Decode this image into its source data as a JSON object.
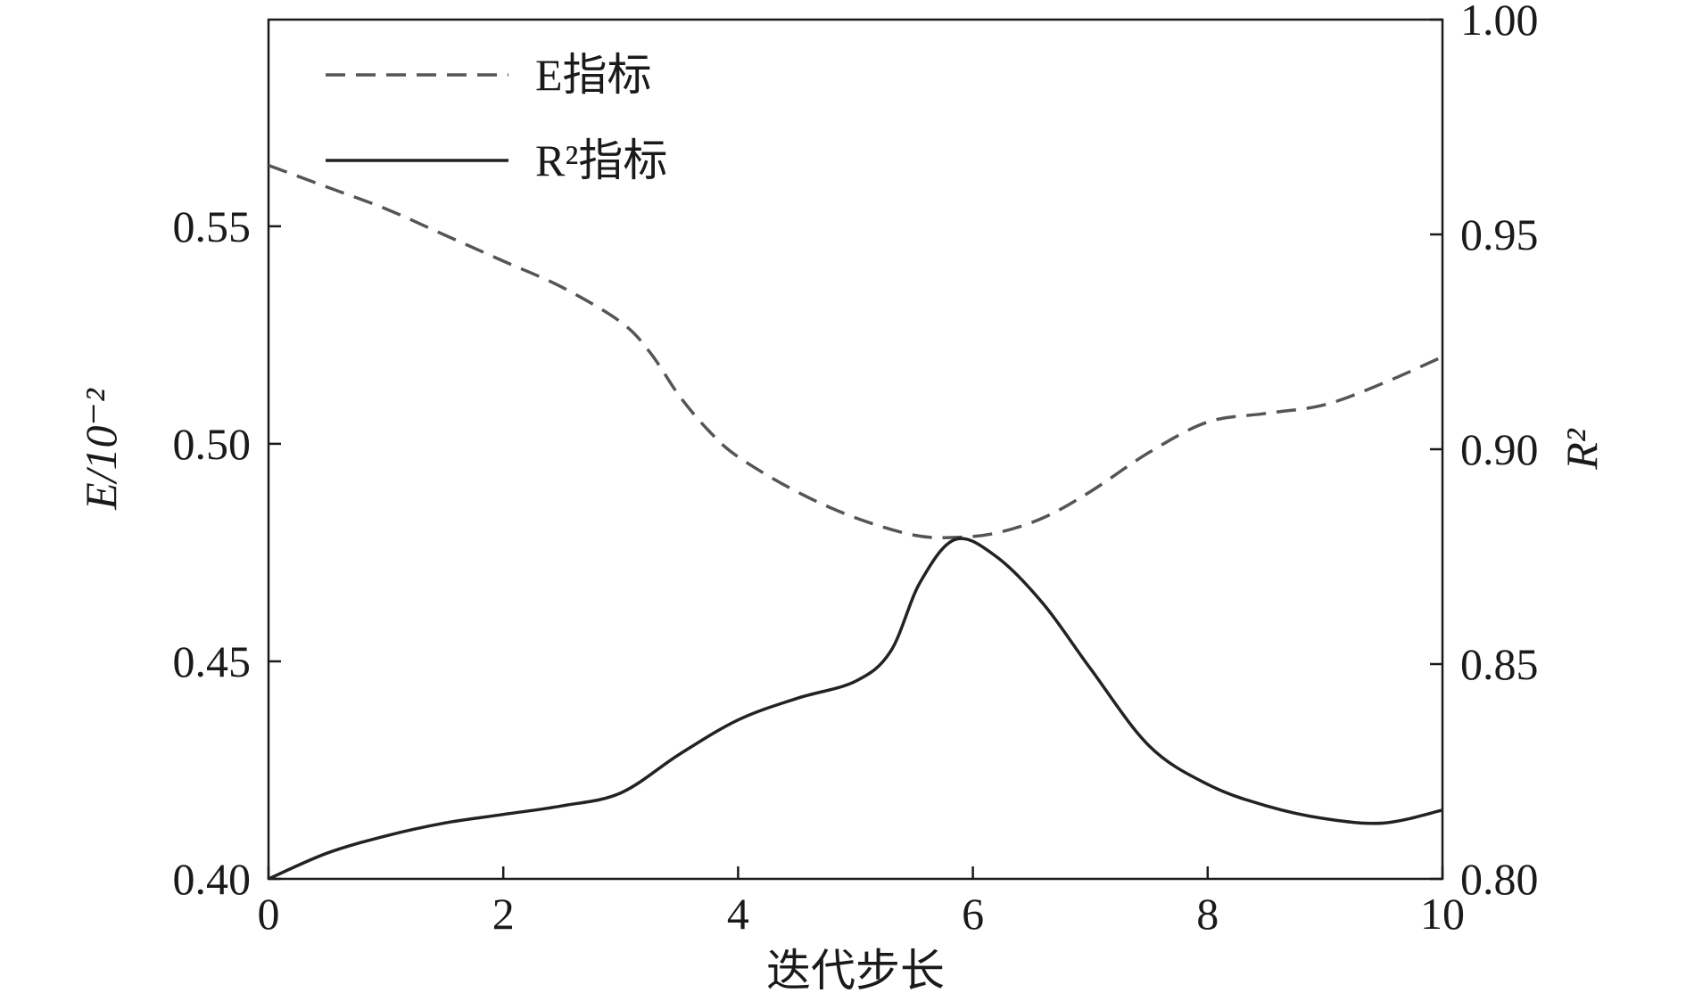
{
  "chart_data": {
    "type": "line",
    "title": "",
    "xlabel": "迭代步长",
    "ylabel_left": "E/10⁻²",
    "ylabel_right": "R²",
    "x_ticks": [
      "0",
      "2",
      "4",
      "6",
      "8",
      "10"
    ],
    "y_left_ticks": [
      "0.40",
      "0.45",
      "0.50",
      "0.55"
    ],
    "y_right_ticks": [
      "0.80",
      "0.85",
      "0.90",
      "0.95",
      "1.00"
    ],
    "xlim": [
      0,
      10
    ],
    "ylim_left": [
      0.4,
      0.5975
    ],
    "ylim_right": [
      0.8,
      1.0
    ],
    "grid": false,
    "legend_position": "top-left",
    "series": [
      {
        "name": "E指标",
        "axis": "left",
        "style": "dashed",
        "color": "#555555",
        "x": [
          0,
          0.5,
          1,
          1.5,
          2,
          2.5,
          3,
          3.25,
          3.5,
          3.75,
          4,
          4.5,
          5,
          5.5,
          5.85,
          6.2,
          6.6,
          7,
          7.5,
          8,
          8.5,
          9,
          9.5,
          10
        ],
        "y": [
          0.564,
          0.559,
          0.554,
          0.548,
          0.542,
          0.536,
          0.528,
          0.521,
          0.511,
          0.503,
          0.497,
          0.489,
          0.483,
          0.479,
          0.4785,
          0.4795,
          0.483,
          0.489,
          0.498,
          0.505,
          0.507,
          0.509,
          0.514,
          0.52
        ]
      },
      {
        "name": "R²指标",
        "axis": "right",
        "style": "solid",
        "color": "#222222",
        "x": [
          0,
          0.5,
          1,
          1.5,
          2,
          2.5,
          3,
          3.5,
          4,
          4.5,
          5,
          5.3,
          5.55,
          5.85,
          6.2,
          6.6,
          7,
          7.5,
          8,
          8.5,
          9,
          9.5,
          10
        ],
        "y": [
          0.8,
          0.806,
          0.81,
          0.813,
          0.815,
          0.817,
          0.82,
          0.829,
          0.837,
          0.842,
          0.846,
          0.853,
          0.869,
          0.879,
          0.875,
          0.864,
          0.849,
          0.831,
          0.822,
          0.817,
          0.814,
          0.813,
          0.816
        ]
      }
    ]
  }
}
